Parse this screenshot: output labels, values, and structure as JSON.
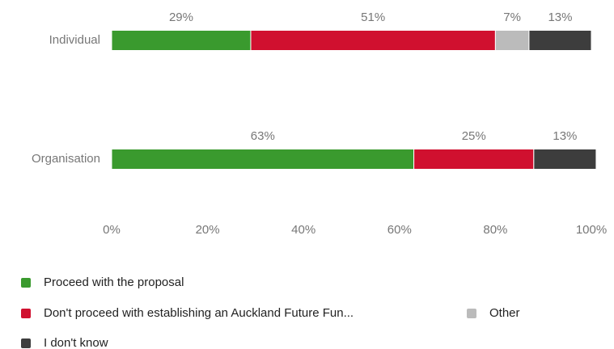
{
  "chart_data": {
    "type": "stacked-bar-horizontal",
    "categories": [
      "Individual",
      "Organisation"
    ],
    "series": [
      {
        "name": "Proceed with the proposal",
        "color": "#3a9a2e",
        "values": [
          29,
          63
        ],
        "value_labels": [
          "29%",
          "63%"
        ]
      },
      {
        "name": "Don't proceed with establishing an Auckland Future Fun...",
        "color": "#d0102f",
        "values": [
          51,
          25
        ],
        "value_labels": [
          "51%",
          "25%"
        ]
      },
      {
        "name": "Other",
        "color": "#bbbbbb",
        "values": [
          7,
          null
        ],
        "value_labels": [
          "7%",
          null
        ]
      },
      {
        "name": "I don't know",
        "color": "#3d3d3d",
        "values": [
          13,
          13
        ],
        "value_labels": [
          "13%",
          "13%"
        ]
      }
    ],
    "xlim": [
      0,
      100
    ],
    "xticks": [
      {
        "value": 0,
        "label": "0%"
      },
      {
        "value": 20,
        "label": "20%"
      },
      {
        "value": 40,
        "label": "40%"
      },
      {
        "value": 60,
        "label": "60%"
      },
      {
        "value": 80,
        "label": "80%"
      },
      {
        "value": 100,
        "label": "100%"
      }
    ]
  }
}
